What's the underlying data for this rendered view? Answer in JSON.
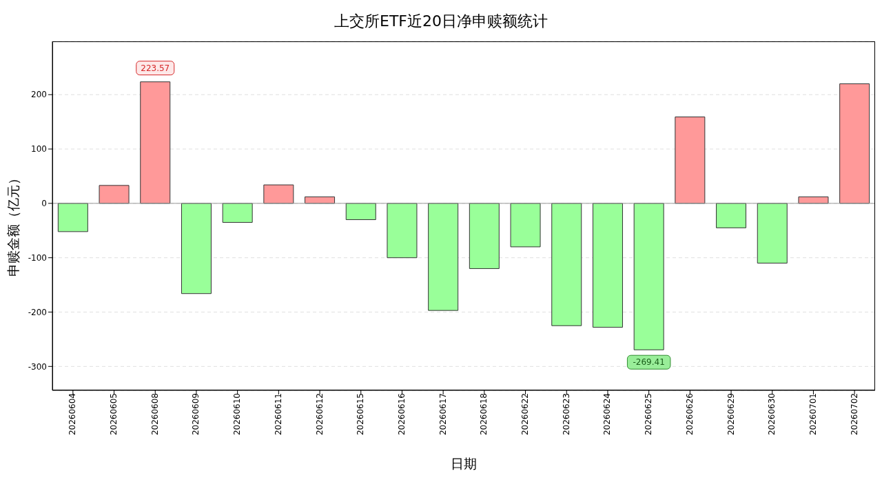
{
  "chart_data": {
    "type": "bar",
    "title": "上交所ETF近20日净申赎额统计",
    "xlabel": "日期",
    "ylabel": "申赎金额（亿元）",
    "categories": [
      "20260604",
      "20260605",
      "20260608",
      "20260609",
      "20260610",
      "20260611",
      "20260612",
      "20260615",
      "20260616",
      "20260617",
      "20260618",
      "20260622",
      "20260623",
      "20260624",
      "20260625",
      "20260626",
      "20260629",
      "20260630",
      "20260701",
      "20260702"
    ],
    "values": [
      -52,
      33,
      223.57,
      -166,
      -35,
      34,
      12,
      -30,
      -100,
      -197,
      -120,
      -80,
      -225,
      -228,
      -269.41,
      159,
      -45,
      -110,
      12,
      220
    ],
    "colors": [
      "#99ff99",
      "#ff9999",
      "#ff9999",
      "#99ff99",
      "#99ff99",
      "#ff9999",
      "#ff9999",
      "#99ff99",
      "#99ff99",
      "#99ff99",
      "#99ff99",
      "#99ff99",
      "#99ff99",
      "#99ff99",
      "#99ff99",
      "#ff9999",
      "#99ff99",
      "#99ff99",
      "#ff9999",
      "#ff9999"
    ],
    "value_labels": [
      null,
      null,
      "223.57",
      null,
      null,
      null,
      null,
      null,
      null,
      null,
      null,
      null,
      null,
      null,
      "-269.41",
      null,
      null,
      null,
      null,
      null
    ],
    "ylim": [
      -344,
      298
    ],
    "yticks": [
      -300,
      -200,
      -100,
      0,
      100,
      200
    ],
    "grid": "y",
    "ref_lines": [
      {
        "axis": "y",
        "value": 0,
        "color": "#999999"
      }
    ]
  }
}
